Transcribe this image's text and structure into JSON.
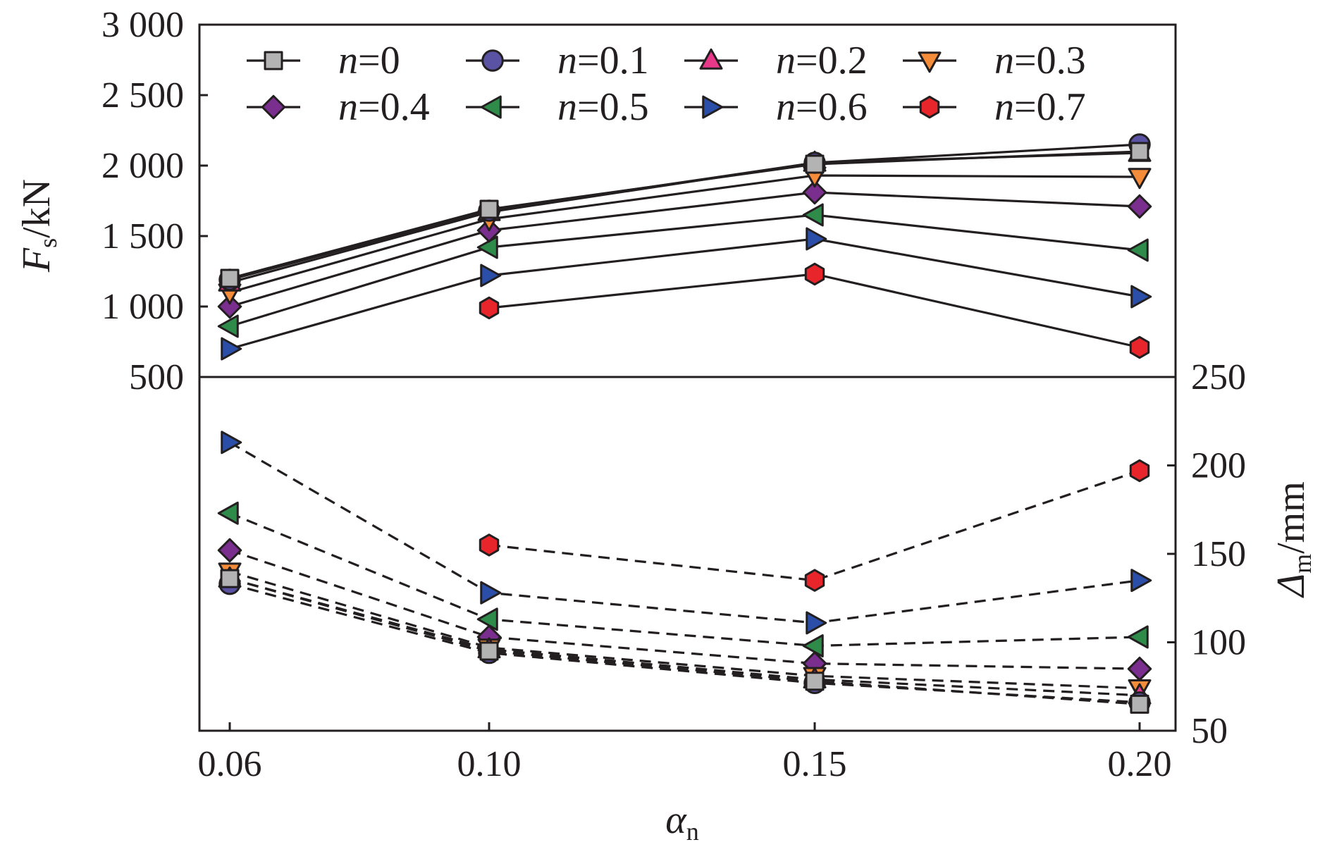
{
  "chart_data": {
    "type": "line",
    "x": [
      0.06,
      0.1,
      0.15,
      0.2
    ],
    "xlabel": "α",
    "xlabel_sub": "n",
    "x_tick_labels": [
      "0.06",
      "0.10",
      "0.15",
      "0.20"
    ],
    "top_panel": {
      "ylabel": "F",
      "ylabel_sub": "s",
      "ylabel_unit": "/kN",
      "ylim": [
        500,
        3000
      ],
      "y_ticks": [
        500,
        1000,
        1500,
        2000,
        2500,
        3000
      ],
      "y_tick_labels": [
        "500",
        "1 000",
        "1 500",
        "2 000",
        "2 500",
        "3 000"
      ],
      "line_style": "solid",
      "series": [
        {
          "name": "n=0",
          "values": [
            1200,
            1690,
            2010,
            2100
          ]
        },
        {
          "name": "n=0.1",
          "values": [
            1190,
            1680,
            2020,
            2150
          ]
        },
        {
          "name": "n=0.2",
          "values": [
            1170,
            1670,
            2020,
            2090
          ]
        },
        {
          "name": "n=0.3",
          "values": [
            1100,
            1620,
            1930,
            1920
          ]
        },
        {
          "name": "n=0.4",
          "values": [
            1000,
            1540,
            1810,
            1710
          ]
        },
        {
          "name": "n=0.5",
          "values": [
            860,
            1420,
            1650,
            1400
          ]
        },
        {
          "name": "n=0.6",
          "values": [
            700,
            1220,
            1480,
            1070
          ]
        },
        {
          "name": "n=0.7",
          "values": [
            null,
            990,
            1230,
            710
          ]
        }
      ]
    },
    "bottom_panel": {
      "ylabel": "Δ",
      "ylabel_sub": "m",
      "ylabel_unit": "/mm",
      "ylim": [
        50,
        250
      ],
      "y_ticks": [
        50,
        100,
        150,
        200,
        250
      ],
      "y_tick_labels": [
        "50",
        "100",
        "150",
        "200",
        "250"
      ],
      "line_style": "dashed",
      "series": [
        {
          "name": "n=0",
          "values": [
            136,
            95,
            78,
            65
          ]
        },
        {
          "name": "n=0.1",
          "values": [
            133,
            94,
            77,
            66
          ]
        },
        {
          "name": "n=0.2",
          "values": [
            136,
            96,
            79,
            70
          ]
        },
        {
          "name": "n=0.3",
          "values": [
            140,
            97,
            81,
            74
          ]
        },
        {
          "name": "n=0.4",
          "values": [
            152,
            103,
            88,
            85
          ]
        },
        {
          "name": "n=0.5",
          "values": [
            173,
            113,
            98,
            103
          ]
        },
        {
          "name": "n=0.6",
          "values": [
            213,
            128,
            111,
            135
          ]
        },
        {
          "name": "n=0.7",
          "values": [
            null,
            155,
            135,
            197
          ]
        }
      ]
    },
    "legend": {
      "placement": "top",
      "columns": 4,
      "entries": [
        {
          "var": "n",
          "value": "=0"
        },
        {
          "var": "n",
          "value": "=0.1"
        },
        {
          "var": "n",
          "value": "=0.2"
        },
        {
          "var": "n",
          "value": "=0.3"
        },
        {
          "var": "n",
          "value": "=0.4"
        },
        {
          "var": "n",
          "value": "=0.5"
        },
        {
          "var": "n",
          "value": "=0.6"
        },
        {
          "var": "n",
          "value": "=0.7"
        }
      ]
    },
    "markers": [
      "square",
      "circle",
      "triangle-up",
      "triangle-down",
      "diamond",
      "triangle-left",
      "triangle-right",
      "hexagon"
    ],
    "colors": [
      "#b3b3b3",
      "#5a52a3",
      "#e8388a",
      "#f58c3a",
      "#7a2e8e",
      "#2e8b4a",
      "#2b4fa8",
      "#e8252b"
    ],
    "line_color": "#231f20",
    "grid": false
  }
}
